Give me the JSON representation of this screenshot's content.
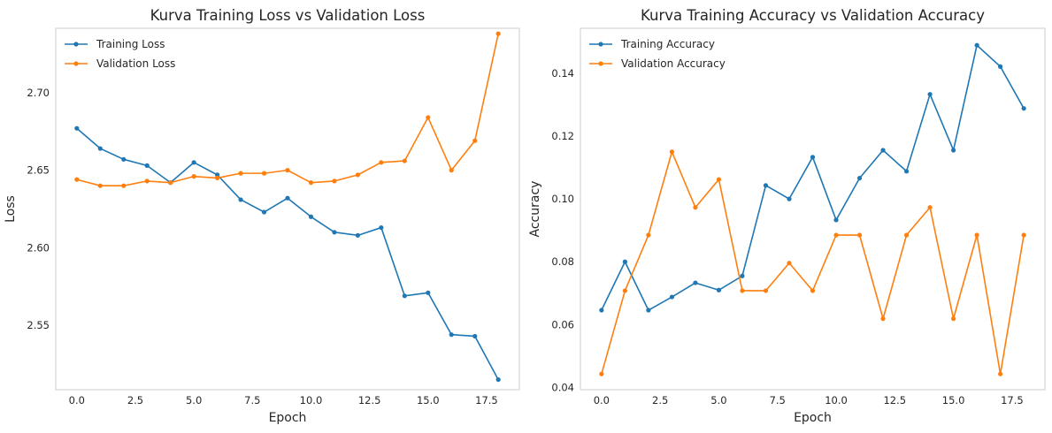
{
  "chart_data": [
    {
      "type": "line",
      "title": "Kurva Training Loss vs Validation Loss",
      "xlabel": "Epoch",
      "ylabel": "Loss",
      "x": [
        0,
        1,
        2,
        3,
        4,
        5,
        6,
        7,
        8,
        9,
        10,
        11,
        12,
        13,
        14,
        15,
        16,
        17,
        18
      ],
      "xlim": [
        -0.9,
        18.9
      ],
      "ylim": [
        2.5085,
        2.7415
      ],
      "xticks": [
        0.0,
        2.5,
        5.0,
        7.5,
        10.0,
        12.5,
        15.0,
        17.5
      ],
      "xtick_labels": [
        "0.0",
        "2.5",
        "5.0",
        "7.5",
        "10.0",
        "12.5",
        "15.0",
        "17.5"
      ],
      "yticks": [
        2.55,
        2.6,
        2.65,
        2.7
      ],
      "ytick_labels": [
        "2.55",
        "2.60",
        "2.65",
        "2.70"
      ],
      "grid": false,
      "legend": "top-left",
      "series": [
        {
          "name": "Training Loss",
          "color": "#1f77b4",
          "values": [
            2.677,
            2.664,
            2.657,
            2.653,
            2.642,
            2.655,
            2.647,
            2.631,
            2.623,
            2.632,
            2.62,
            2.61,
            2.608,
            2.613,
            2.569,
            2.571,
            2.544,
            2.543,
            2.515
          ]
        },
        {
          "name": "Validation Loss",
          "color": "#ff7f0e",
          "values": [
            2.644,
            2.64,
            2.64,
            2.643,
            2.642,
            2.646,
            2.645,
            2.648,
            2.648,
            2.65,
            2.642,
            2.643,
            2.647,
            2.655,
            2.656,
            2.684,
            2.65,
            2.669,
            2.738
          ]
        }
      ]
    },
    {
      "type": "line",
      "title": "Kurva Training Accuracy vs Validation Accuracy",
      "xlabel": "Epoch",
      "ylabel": "Accuracy",
      "x": [
        0,
        1,
        2,
        3,
        4,
        5,
        6,
        7,
        8,
        9,
        10,
        11,
        12,
        13,
        14,
        15,
        16,
        17,
        18
      ],
      "xlim": [
        -0.9,
        18.9
      ],
      "ylim": [
        0.0393,
        0.1543
      ],
      "xticks": [
        0.0,
        2.5,
        5.0,
        7.5,
        10.0,
        12.5,
        15.0,
        17.5
      ],
      "xtick_labels": [
        "0.0",
        "2.5",
        "5.0",
        "7.5",
        "10.0",
        "12.5",
        "15.0",
        "17.5"
      ],
      "yticks": [
        0.04,
        0.06,
        0.08,
        0.1,
        0.12,
        0.14
      ],
      "ytick_labels": [
        "0.04",
        "0.06",
        "0.08",
        "0.10",
        "0.12",
        "0.14"
      ],
      "grid": false,
      "legend": "top-left",
      "series": [
        {
          "name": "Training Accuracy",
          "color": "#1f77b4",
          "values": [
            0.0646,
            0.08,
            0.0646,
            0.0688,
            0.0733,
            0.071,
            0.0755,
            0.1043,
            0.1,
            0.1133,
            0.0933,
            0.1066,
            0.1155,
            0.1088,
            0.1333,
            0.1155,
            0.1489,
            0.1421,
            0.1288
          ]
        },
        {
          "name": "Validation Accuracy",
          "color": "#ff7f0e",
          "values": [
            0.0443,
            0.0708,
            0.0885,
            0.115,
            0.0973,
            0.1062,
            0.0708,
            0.0708,
            0.0796,
            0.0708,
            0.0885,
            0.0885,
            0.0619,
            0.0885,
            0.0973,
            0.0619,
            0.0885,
            0.0443,
            0.0885
          ]
        }
      ]
    }
  ]
}
